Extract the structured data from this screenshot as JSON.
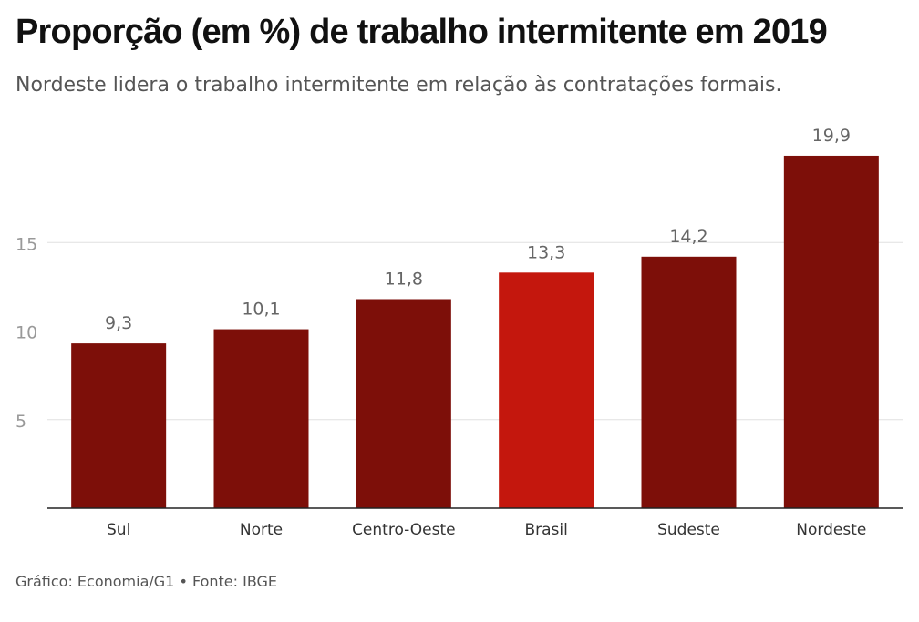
{
  "title": "Proporção (em %) de trabalho intermitente em 2019",
  "subtitle": "Nordeste lidera o trabalho intermitente em relação às contratações formais.",
  "source": "Gráfico: Economia/G1 • Fonte: IBGE",
  "colors": {
    "bar": "#7d0f09",
    "highlight": "#c4170d",
    "grid": "#e0e0e0",
    "axis": "#222222",
    "label": "#666666"
  },
  "chart_data": {
    "type": "bar",
    "categories": [
      "Sul",
      "Norte",
      "Centro-Oeste",
      "Brasil",
      "Sudeste",
      "Nordeste"
    ],
    "values": [
      9.3,
      10.1,
      11.8,
      13.3,
      14.2,
      19.9
    ],
    "value_labels": [
      "9,3",
      "10,1",
      "11,8",
      "13,3",
      "14,2",
      "19,9"
    ],
    "highlight": "Brasil",
    "yticks": [
      5,
      10,
      15
    ],
    "ylim": [
      0,
      20
    ],
    "grid": true
  }
}
